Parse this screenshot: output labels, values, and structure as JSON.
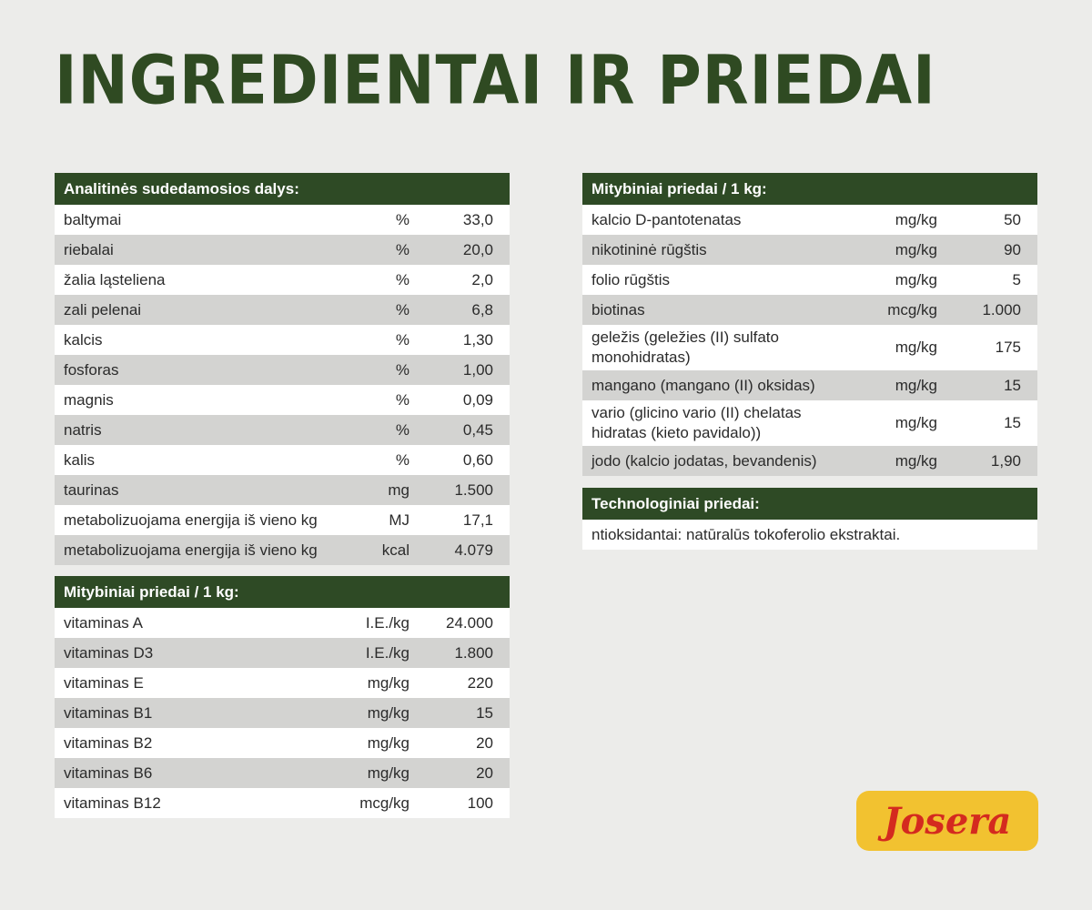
{
  "title": "INGREDIENTAI IR PRIEDAI",
  "analytic": {
    "heading": "Analitinės sudedamosios dalys:",
    "rows": [
      {
        "name": "baltymai",
        "unit": "%",
        "value": "33,0"
      },
      {
        "name": "riebalai",
        "unit": "%",
        "value": "20,0"
      },
      {
        "name": "žalia ląsteliena",
        "unit": "%",
        "value": "2,0"
      },
      {
        "name": "zali pelenai",
        "unit": "%",
        "value": "6,8"
      },
      {
        "name": "kalcis",
        "unit": "%",
        "value": "1,30"
      },
      {
        "name": "fosforas",
        "unit": "%",
        "value": "1,00"
      },
      {
        "name": "magnis",
        "unit": "%",
        "value": "0,09"
      },
      {
        "name": "natris",
        "unit": "%",
        "value": "0,45"
      },
      {
        "name": "kalis",
        "unit": "%",
        "value": "0,60"
      },
      {
        "name": "taurinas",
        "unit": "mg",
        "value": "1.500"
      },
      {
        "name": "metabolizuojama energija iš vieno kg",
        "unit": "MJ",
        "value": "17,1"
      },
      {
        "name": "metabolizuojama energija iš vieno kg",
        "unit": "kcal",
        "value": "4.079"
      }
    ]
  },
  "vitamins": {
    "heading": "Mitybiniai priedai / 1 kg:",
    "rows": [
      {
        "name": "vitaminas A",
        "unit": "I.E./kg",
        "value": "24.000"
      },
      {
        "name": "vitaminas D3",
        "unit": "I.E./kg",
        "value": "1.800"
      },
      {
        "name": "vitaminas E",
        "unit": "mg/kg",
        "value": "220"
      },
      {
        "name": "vitaminas B1",
        "unit": "mg/kg",
        "value": "15"
      },
      {
        "name": "vitaminas B2",
        "unit": "mg/kg",
        "value": "20"
      },
      {
        "name": "vitaminas B6",
        "unit": "mg/kg",
        "value": "20"
      },
      {
        "name": "vitaminas B12",
        "unit": "mcg/kg",
        "value": "100"
      }
    ]
  },
  "additives": {
    "heading": "Mitybiniai priedai / 1 kg:",
    "rows": [
      {
        "name": "kalcio D-pantotenatas",
        "unit": "mg/kg",
        "value": "50"
      },
      {
        "name": "nikotininė rūgštis",
        "unit": "mg/kg",
        "value": "90"
      },
      {
        "name": "folio rūgštis",
        "unit": "mg/kg",
        "value": "5"
      },
      {
        "name": "biotinas",
        "unit": "mcg/kg",
        "value": "1.000"
      },
      {
        "name": "geležis (geležies (II) sulfato monohidratas)",
        "unit": "mg/kg",
        "value": "175"
      },
      {
        "name": "mangano (mangano (II) oksidas)",
        "unit": "mg/kg",
        "value": "15"
      },
      {
        "name": "vario (glicino vario (II) chelatas hidratas (kieto pavidalo))",
        "unit": "mg/kg",
        "value": "15"
      },
      {
        "name": "jodo (kalcio jodatas, bevandenis)",
        "unit": "mg/kg",
        "value": "1,90"
      }
    ]
  },
  "technological": {
    "heading": "Technologiniai priedai:",
    "text": "ntioksidantai: natūralūs tokoferolio ekstraktai."
  },
  "logo": {
    "text": "Josera",
    "bg_color": "#f2c230",
    "text_color": "#d42a1f"
  }
}
